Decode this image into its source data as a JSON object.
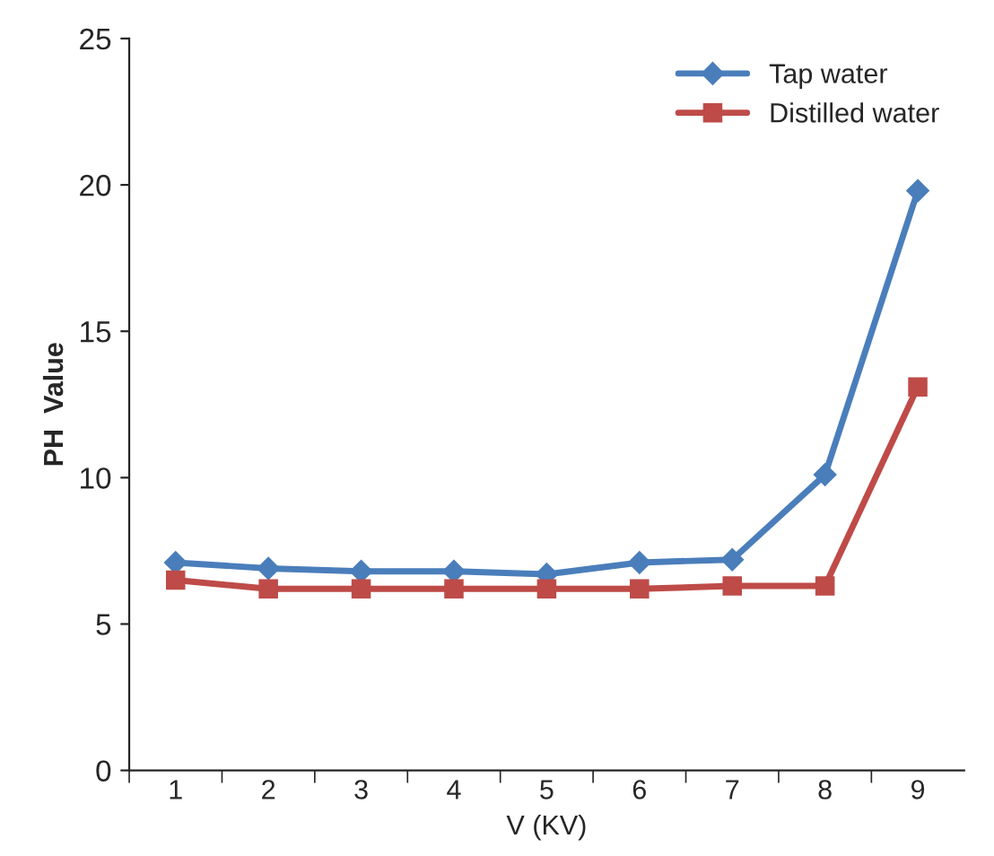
{
  "chart_data": {
    "type": "line",
    "xlabel": "V (KV)",
    "ylabel": "PH  Value",
    "categories": [
      "1",
      "2",
      "3",
      "4",
      "5",
      "6",
      "7",
      "8",
      "9"
    ],
    "series": [
      {
        "name": "Tap water",
        "color": "#4a7ebb",
        "marker": "diamond",
        "values": [
          7.1,
          6.9,
          6.8,
          6.8,
          6.7,
          7.1,
          7.2,
          10.1,
          19.8
        ]
      },
      {
        "name": "Distilled water",
        "color": "#be4b48",
        "marker": "square",
        "values": [
          6.5,
          6.2,
          6.2,
          6.2,
          6.2,
          6.2,
          6.3,
          6.3,
          13.1
        ]
      }
    ],
    "ylim": [
      0,
      25
    ],
    "yticks": [
      0,
      5,
      10,
      15,
      20,
      25
    ],
    "grid": false,
    "legend": "top right"
  }
}
